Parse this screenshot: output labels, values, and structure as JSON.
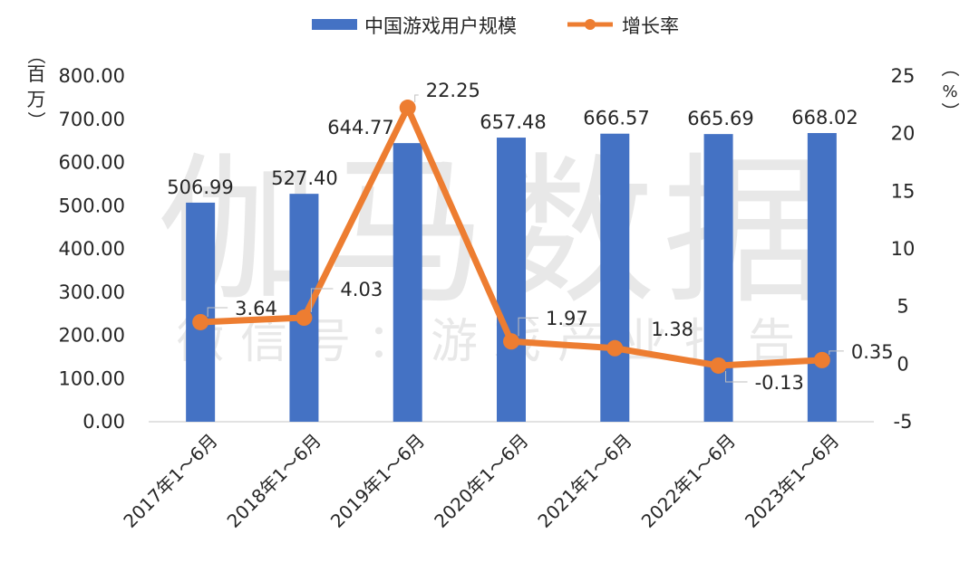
{
  "watermark": {
    "main": "伽马数据",
    "sub": "微信号：游戏产业报告"
  },
  "colors": {
    "bar": "#4472C4",
    "line": "#ED7D31",
    "text": "#262626",
    "axis": "#D9D9D9",
    "watermark": "#D6D6D6"
  },
  "chart_data": {
    "type": "bar",
    "categories": [
      "2017年1～6月",
      "2018年1～6月",
      "2019年1～6月",
      "2020年1～6月",
      "2021年1～6月",
      "2022年1～6月",
      "2023年1～6月"
    ],
    "series": [
      {
        "name": "中国游戏用户规模",
        "type": "bar",
        "axis": "left",
        "values": [
          506.99,
          527.4,
          644.77,
          657.48,
          666.57,
          665.69,
          668.02
        ],
        "labels": [
          "506.99",
          "527.40",
          "644.77",
          "657.48",
          "666.57",
          "665.69",
          "668.02"
        ]
      },
      {
        "name": "增长率",
        "type": "line",
        "axis": "right",
        "values": [
          3.64,
          4.03,
          22.25,
          1.97,
          1.38,
          -0.13,
          0.35
        ],
        "labels": [
          "3.64",
          "4.03",
          "22.25",
          "1.97",
          "1.38",
          "-0.13",
          "0.35"
        ]
      }
    ],
    "left_axis": {
      "unit_label": [
        "（",
        "百",
        "万",
        "）"
      ],
      "ylim": [
        0,
        800
      ],
      "ticks": [
        "0.00",
        "100.00",
        "200.00",
        "300.00",
        "400.00",
        "500.00",
        "600.00",
        "700.00",
        "800.00"
      ]
    },
    "right_axis": {
      "unit_label": [
        "（",
        "%",
        "）"
      ],
      "ylim": [
        -5,
        25
      ],
      "ticks": [
        "-5",
        "0",
        "5",
        "10",
        "15",
        "20",
        "25"
      ]
    },
    "legend_position": "top-center",
    "grid": false
  }
}
